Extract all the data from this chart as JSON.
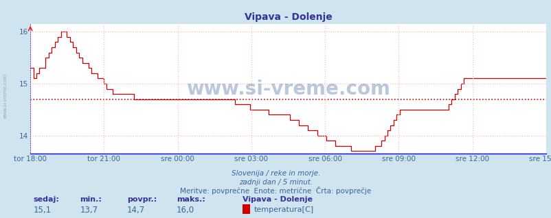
{
  "title": "Vipava - Dolenje",
  "bg_color": "#d0e4f0",
  "plot_bg_color": "#ffffff",
  "line_color": "#cc0000",
  "avg_line_color": "#cc0000",
  "avg_value": 14.7,
  "grid_color": "#ffbbbb",
  "ymin": 13.65,
  "ymax": 16.15,
  "yticks": [
    14,
    15,
    16
  ],
  "xtick_labels": [
    "tor 18:00",
    "tor 21:00",
    "sre 00:00",
    "sre 03:00",
    "sre 06:00",
    "sre 09:00",
    "sre 12:00",
    "sre 15:00"
  ],
  "xlabel_color": "#336699",
  "title_color": "#333399",
  "footer_lines": [
    "Slovenija / reke in morje.",
    "zadnji dan / 5 minut.",
    "Meritve: povprečne  Enote: metrične  Črta: povprečje"
  ],
  "footer_color": "#336699",
  "stats_labels": [
    "sedaj:",
    "min.:",
    "povpr.:",
    "maks.:"
  ],
  "stats_values": [
    "15,1",
    "13,7",
    "14,7",
    "16,0"
  ],
  "legend_station": "Vipava - Dolenje",
  "legend_param": "temperatura[C]",
  "legend_color": "#cc0000",
  "watermark": "www.si-vreme.com",
  "left_label": "www.si-vreme.com",
  "temperature_data": [
    15.3,
    15.1,
    15.2,
    15.3,
    15.3,
    15.5,
    15.6,
    15.7,
    15.8,
    15.9,
    16.0,
    16.0,
    15.9,
    15.8,
    15.7,
    15.6,
    15.5,
    15.4,
    15.4,
    15.3,
    15.2,
    15.2,
    15.1,
    15.1,
    15.0,
    14.9,
    14.9,
    14.8,
    14.8,
    14.8,
    14.8,
    14.8,
    14.8,
    14.8,
    14.7,
    14.7,
    14.7,
    14.7,
    14.7,
    14.7,
    14.7,
    14.7,
    14.7,
    14.7,
    14.7,
    14.7,
    14.7,
    14.7,
    14.7,
    14.7,
    14.7,
    14.7,
    14.7,
    14.7,
    14.7,
    14.7,
    14.7,
    14.7,
    14.7,
    14.7,
    14.7,
    14.7,
    14.7,
    14.7,
    14.7,
    14.7,
    14.7,
    14.6,
    14.6,
    14.6,
    14.6,
    14.6,
    14.5,
    14.5,
    14.5,
    14.5,
    14.5,
    14.5,
    14.4,
    14.4,
    14.4,
    14.4,
    14.4,
    14.4,
    14.4,
    14.3,
    14.3,
    14.3,
    14.2,
    14.2,
    14.2,
    14.1,
    14.1,
    14.1,
    14.0,
    14.0,
    14.0,
    13.9,
    13.9,
    13.9,
    13.8,
    13.8,
    13.8,
    13.8,
    13.8,
    13.7,
    13.7,
    13.7,
    13.7,
    13.7,
    13.7,
    13.7,
    13.7,
    13.8,
    13.8,
    13.9,
    14.0,
    14.1,
    14.2,
    14.3,
    14.4,
    14.5,
    14.5,
    14.5,
    14.5,
    14.5,
    14.5,
    14.5,
    14.5,
    14.5,
    14.5,
    14.5,
    14.5,
    14.5,
    14.5,
    14.5,
    14.5,
    14.6,
    14.7,
    14.8,
    14.9,
    15.0,
    15.1,
    15.1,
    15.1,
    15.1,
    15.1,
    15.1,
    15.1,
    15.1,
    15.1,
    15.1,
    15.1,
    15.1,
    15.1,
    15.1,
    15.1,
    15.1,
    15.1,
    15.1,
    15.1,
    15.1,
    15.1,
    15.1,
    15.1,
    15.1,
    15.1,
    15.1,
    15.1,
    15.1
  ]
}
